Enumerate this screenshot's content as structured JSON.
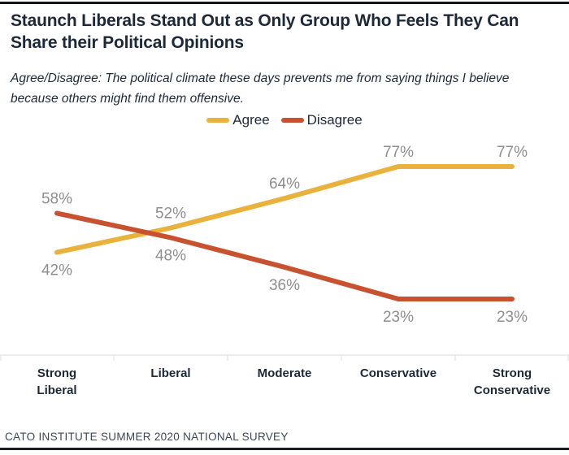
{
  "page": {
    "title": "Staunch Liberals Stand Out as Only Group Who Feels They Can Share their Political Opinions",
    "subtitle": "Agree/Disagree: The political climate these days prevents me from saying things I believe because others might find them offensive.",
    "footer": "CATO INSTITUTE SUMMER 2020 NATIONAL SURVEY"
  },
  "colors": {
    "agree_line": "#E8B23C",
    "disagree_line": "#C8512F",
    "title_text": "#1D2939",
    "data_label": "#8E8E8E",
    "axis_line": "#E8E8E8",
    "footer_text": "#3E4756",
    "border": "#111418",
    "background": "#FFFFFF"
  },
  "chart_data": {
    "type": "line",
    "categories": [
      "Strong Liberal",
      "Liberal",
      "Moderate",
      "Conservative",
      "Strong Conservative"
    ],
    "series": [
      {
        "name": "Agree",
        "color": "#E8B23C",
        "values": [
          42,
          52,
          64,
          77,
          77
        ]
      },
      {
        "name": "Disagree",
        "color": "#C8512F",
        "values": [
          58,
          48,
          36,
          23,
          23
        ]
      }
    ],
    "value_suffix": "%",
    "data_labels": true,
    "ylim": [
      0,
      100
    ],
    "xlabel": "",
    "ylabel": "",
    "grid": false,
    "legend_position": "top"
  }
}
